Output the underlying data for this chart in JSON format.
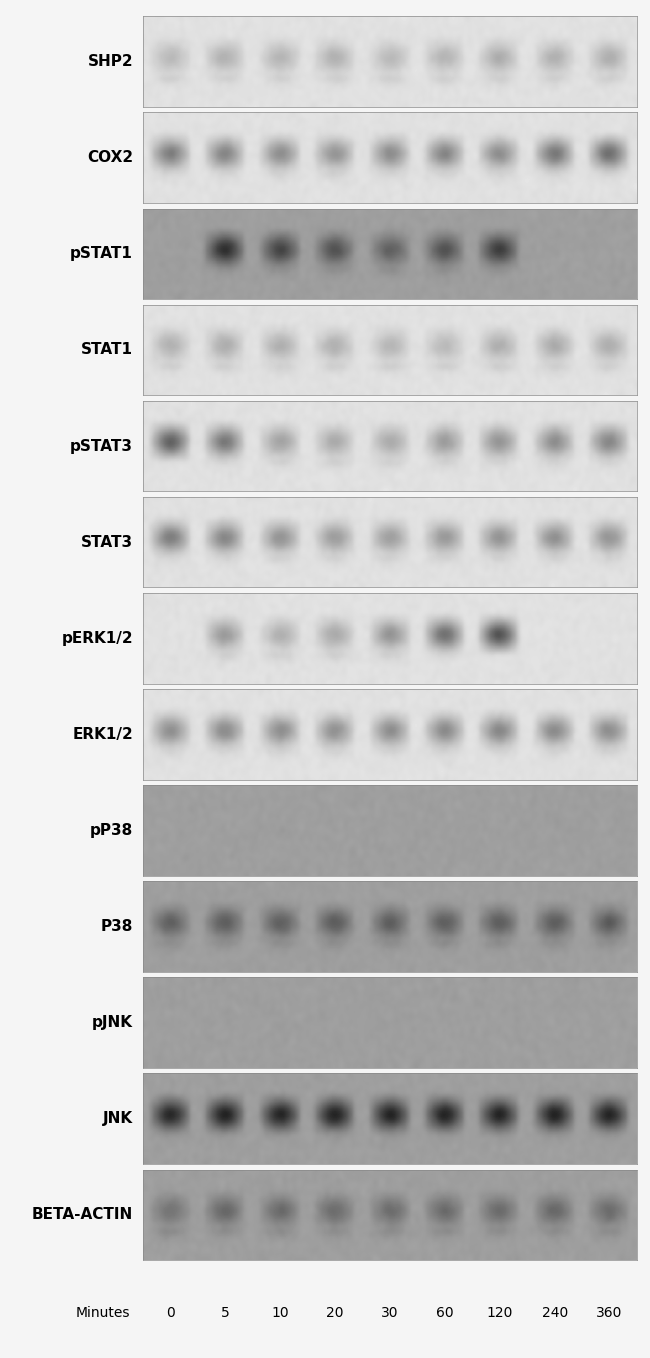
{
  "labels": [
    "SHP2",
    "COX2",
    "pSTAT1",
    "STAT1",
    "pSTAT3",
    "STAT3",
    "pERK1/2",
    "ERK1/2",
    "pP38",
    "P38",
    "pJNK",
    "JNK",
    "BETA-ACTIN"
  ],
  "time_points": [
    "0",
    "5",
    "10",
    "20",
    "30",
    "60",
    "120",
    "240",
    "360"
  ],
  "n_lanes": 9,
  "figure_bg": "#f0f0f0",
  "panel_bg_light": "#d8d8d8",
  "panel_bg_white": "#e8e8e8",
  "band_intensity": {
    "SHP2": [
      0.9,
      0.85,
      0.88,
      0.85,
      0.9,
      0.87,
      0.82,
      0.85,
      0.83
    ],
    "COX2": [
      0.5,
      0.55,
      0.6,
      0.65,
      0.6,
      0.55,
      0.6,
      0.45,
      0.4
    ],
    "pSTAT1": [
      0.0,
      0.4,
      0.55,
      0.65,
      0.75,
      0.65,
      0.5,
      0.0,
      0.0
    ],
    "STAT1": [
      0.85,
      0.82,
      0.83,
      0.85,
      0.88,
      0.9,
      0.83,
      0.8,
      0.82
    ],
    "pSTAT3": [
      0.3,
      0.45,
      0.75,
      0.8,
      0.8,
      0.7,
      0.65,
      0.6,
      0.55
    ],
    "STAT3": [
      0.5,
      0.55,
      0.65,
      0.7,
      0.72,
      0.68,
      0.65,
      0.62,
      0.65
    ],
    "pERK1/2": [
      0.0,
      0.7,
      0.85,
      0.8,
      0.65,
      0.4,
      0.2,
      0.0,
      0.0
    ],
    "ERK1/2": [
      0.6,
      0.58,
      0.6,
      0.62,
      0.6,
      0.58,
      0.55,
      0.58,
      0.6
    ],
    "pP38": [
      0.0,
      0.0,
      0.0,
      0.0,
      0.0,
      0.0,
      0.0,
      0.0,
      0.0
    ],
    "P38": [
      0.75,
      0.73,
      0.74,
      0.72,
      0.73,
      0.74,
      0.72,
      0.73,
      0.72
    ],
    "pJNK": [
      0.0,
      0.0,
      0.0,
      0.0,
      0.0,
      0.0,
      0.0,
      0.0,
      0.0
    ],
    "JNK": [
      0.35,
      0.32,
      0.33,
      0.32,
      0.33,
      0.32,
      0.33,
      0.32,
      0.33
    ],
    "BETA-ACTIN": [
      0.88,
      0.8,
      0.82,
      0.83,
      0.83,
      0.82,
      0.82,
      0.8,
      0.83
    ]
  },
  "panel_colors": {
    "SHP2": "white",
    "COX2": "white",
    "pSTAT1": "gray",
    "STAT1": "white",
    "pSTAT3": "white",
    "STAT3": "white",
    "pERK1/2": "white",
    "ERK1/2": "white",
    "pP38": "gray",
    "P38": "gray",
    "pJNK": "gray",
    "JNK": "gray",
    "BETA-ACTIN": "gray"
  },
  "label_fontsize": 11,
  "tick_fontsize": 10
}
